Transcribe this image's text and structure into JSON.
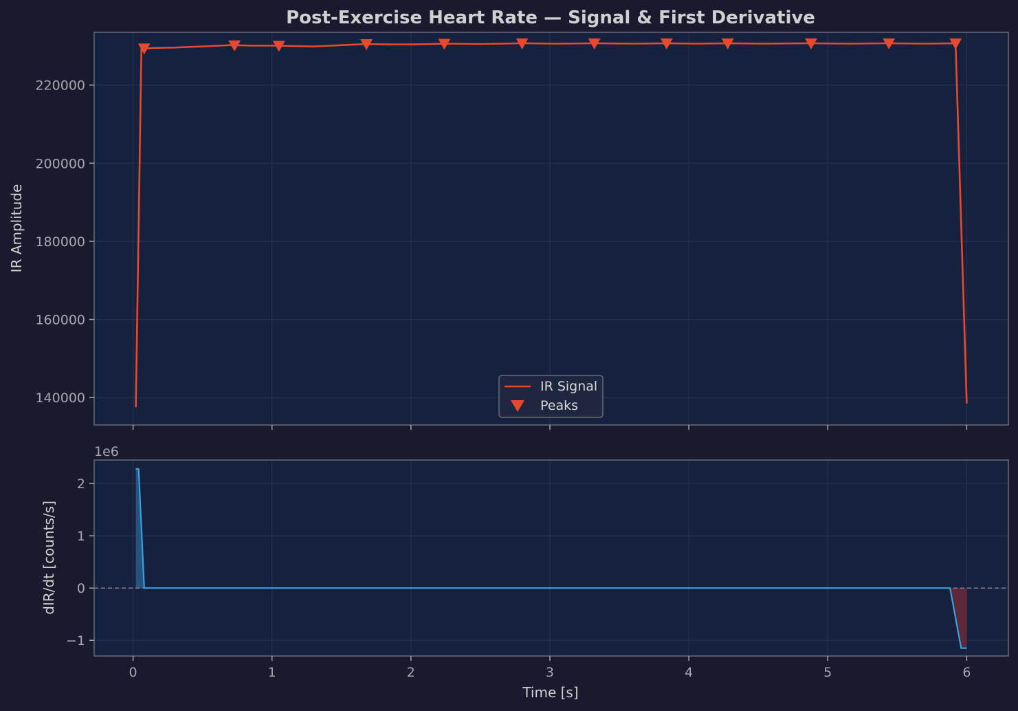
{
  "chart_data": {
    "type": "line",
    "title": "Post-Exercise Heart Rate — Signal & First Derivative",
    "xlabel": "Time [s]",
    "xlim": [
      -0.28,
      6.3
    ],
    "xticks": [
      0,
      1,
      2,
      3,
      4,
      5,
      6
    ],
    "colors": {
      "signal": "#e8492c",
      "derivative": "#3a9ee0",
      "fill_pos": "#2a5a88",
      "fill_neg": "#6a2a3a",
      "background": "#1a1a2e",
      "axes_bg": "#16213e"
    },
    "panels": [
      {
        "id": "signal",
        "ylabel": "IR Amplitude",
        "ylim": [
          133000,
          233500
        ],
        "yticks": [
          140000,
          160000,
          180000,
          200000,
          220000
        ],
        "legend": {
          "position": "lower-center",
          "entries": [
            "IR Signal",
            "Peaks"
          ]
        },
        "series": [
          {
            "name": "IR Signal",
            "kind": "line",
            "x": [
              0.02,
              0.06,
              0.15,
              0.3,
              0.5,
              0.7,
              0.85,
              1.0,
              1.15,
              1.3,
              1.5,
              1.68,
              1.85,
              2.0,
              2.25,
              2.5,
              2.8,
              3.05,
              3.32,
              3.6,
              3.84,
              4.05,
              4.28,
              4.55,
              4.88,
              5.15,
              5.44,
              5.7,
              5.92,
              6.0
            ],
            "y": [
              137500,
              229300,
              229500,
              229600,
              229900,
              230200,
              230100,
              230100,
              230000,
              229900,
              230200,
              230500,
              230400,
              230400,
              230600,
              230500,
              230700,
              230600,
              230700,
              230600,
              230700,
              230600,
              230700,
              230600,
              230700,
              230600,
              230700,
              230600,
              230700,
              138500
            ]
          },
          {
            "name": "Peaks",
            "kind": "markers",
            "x": [
              0.08,
              0.73,
              1.05,
              1.68,
              2.24,
              2.8,
              3.32,
              3.84,
              4.28,
              4.88,
              5.44,
              5.92
            ],
            "y": [
              229400,
              230200,
              230100,
              230500,
              230600,
              230700,
              230700,
              230700,
              230700,
              230700,
              230700,
              230700
            ]
          }
        ]
      },
      {
        "id": "derivative",
        "ylabel": "dIR/dt [counts/s]",
        "offset_text": "1e6",
        "ylim": [
          -1.3,
          2.45
        ],
        "yticks": [
          -1,
          0,
          1,
          2
        ],
        "ytick_labels": [
          "−1",
          "0",
          "1",
          "2"
        ],
        "zero_line": true,
        "series": [
          {
            "name": "dIR/dt",
            "kind": "line",
            "x": [
              0.02,
              0.04,
              0.08,
              0.5,
              1.0,
              2.0,
              3.0,
              4.0,
              5.0,
              5.88,
              5.96,
              6.0
            ],
            "y": [
              2.28,
              2.28,
              0.0,
              0.0,
              0.0,
              0.0,
              0.0,
              0.0,
              0.0,
              0.0,
              -1.15,
              -1.15
            ]
          }
        ]
      }
    ]
  }
}
